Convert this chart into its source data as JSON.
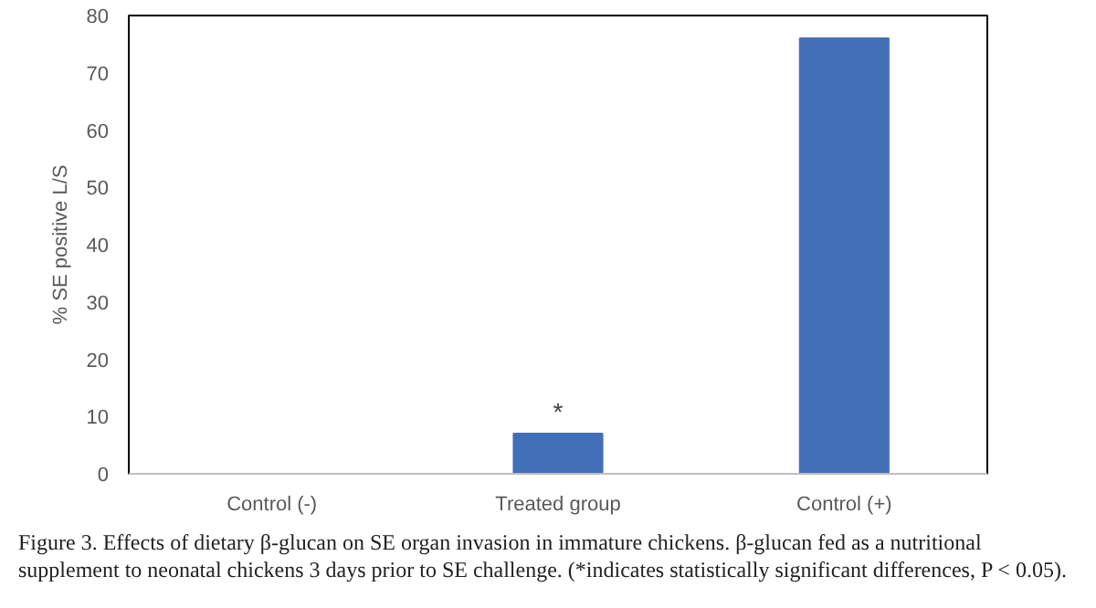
{
  "chart_data": {
    "type": "bar",
    "ylabel": "% SE positive L/S",
    "categories": [
      "Control (-)",
      "Treated group",
      "Control (+)"
    ],
    "values": [
      0,
      7,
      76
    ],
    "color": "#4270b8",
    "ylim": [
      0,
      80
    ],
    "yticks": [
      0,
      10,
      20,
      30,
      40,
      50,
      60,
      70,
      80
    ],
    "grid": false,
    "annotations": [
      {
        "text": "*",
        "x": "Treated group",
        "y": 7
      },
      "Figure 3. Effects of dietary β-glucan on SE organ invasion in immature chickens. β-glucan fed as a nutritional supplement to neonatal chickens 3 days prior to SE challenge. (*indicates statistically significant differences, P < 0.05)."
    ]
  }
}
